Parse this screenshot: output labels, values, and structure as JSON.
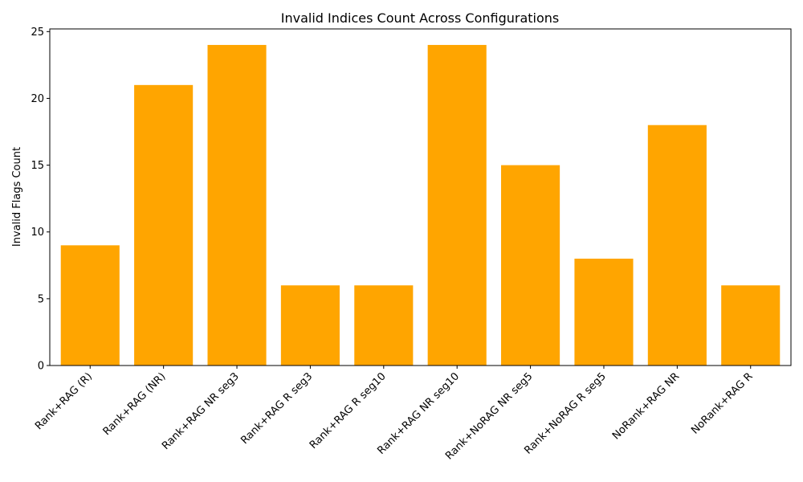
{
  "chart_data": {
    "type": "bar",
    "title": "Invalid Indices Count Across Configurations",
    "xlabel": "",
    "ylabel": "Invalid Flags Count",
    "categories": [
      "Rank+RAG (R)",
      "Rank+RAG (NR)",
      "Rank+RAG NR seg3",
      "Rank+RAG R seg3",
      "Rank+RAG R seg10",
      "Rank+RAG NR seg10",
      "Rank+NoRAG NR seg5",
      "Rank+NoRAG R seg5",
      "NoRank+RAG NR",
      "NoRank+RAG R"
    ],
    "values": [
      9,
      21,
      24,
      6,
      6,
      24,
      15,
      8,
      18,
      6
    ],
    "ylim": [
      0,
      25.2
    ],
    "yticks": [
      "0",
      "5",
      "10",
      "15",
      "20",
      "25"
    ],
    "bar_color": "#FFA500",
    "grid": false,
    "legend": "none"
  }
}
